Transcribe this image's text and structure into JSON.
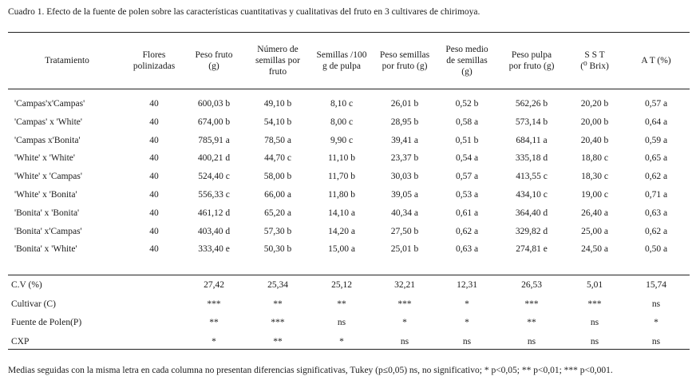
{
  "caption": "Cuadro 1.  Efecto de la fuente de polen sobre las características cuantitativas y cualitativas del fruto en 3 cultivares de chirimoya.",
  "headers": [
    [
      "Tratamiento"
    ],
    [
      "Flores",
      "polinizadas"
    ],
    [
      "Peso fruto",
      "(g)"
    ],
    [
      "Número de",
      "semillas por",
      "fruto"
    ],
    [
      "Semillas /100",
      "g de pulpa"
    ],
    [
      "Peso semillas",
      "por fruto (g)"
    ],
    [
      "Peso medio",
      "de semillas",
      "(g)"
    ],
    [
      "Peso pulpa",
      "por fruto (g)"
    ],
    [
      "S S T",
      "(⁰ Brix)"
    ],
    [
      "A T (%)"
    ]
  ],
  "rows": [
    [
      "'Campas'x'Campas'",
      "40",
      "600,03 b",
      "49,10 b",
      "8,10 c",
      "26,01 b",
      "0,52 b",
      "562,26 b",
      "20,20 b",
      "0,57 a"
    ],
    [
      "'Campas' x 'White'",
      "40",
      "674,00 b",
      "54,10 b",
      "8,00 c",
      "28,95 b",
      "0,58 a",
      "573,14 b",
      "20,00 b",
      "0,64 a"
    ],
    [
      "'Campas x'Bonita'",
      "40",
      "785,91 a",
      "78,50 a",
      "9,90 c",
      "39,41 a",
      "0,51 b",
      "684,11 a",
      "20,40 b",
      "0,59 a"
    ],
    [
      "'White' x 'White'",
      "40",
      "400,21 d",
      "44,70 c",
      "11,10 b",
      "23,37 b",
      "0,54 a",
      "335,18 d",
      "18,80 c",
      "0,65 a"
    ],
    [
      "'White' x 'Campas'",
      "40",
      "524,40 c",
      "58,00 b",
      "11,70 b",
      "30,03 b",
      "0,57 a",
      "413,55 c",
      "18,30 c",
      "0,62 a"
    ],
    [
      "'White' x 'Bonita'",
      "40",
      "556,33 c",
      "66,00 a",
      "11,80 b",
      "39,05 a",
      "0,53 a",
      "434,10 c",
      "19,00 c",
      "0,71 a"
    ],
    [
      "'Bonita' x 'Bonita'",
      "40",
      "461,12 d",
      "65,20 a",
      "14,10 a",
      "40,34 a",
      "0,61 a",
      "364,40 d",
      "26,40 a",
      "0,63 a"
    ],
    [
      "'Bonita' x'Campas'",
      "40",
      "403,40 d",
      "57,30 b",
      "14,20 a",
      "27,50 b",
      "0,62 a",
      "329,82 d",
      "25,00 a",
      "0,62 a"
    ],
    [
      "'Bonita' x 'White'",
      "40",
      "333,40 e",
      "50,30 b",
      "15,00 a",
      "25,01 b",
      "0,63 a",
      "274,81 e",
      "24,50 a",
      "0,50 a"
    ]
  ],
  "stats": [
    [
      "C.V (%)",
      "",
      "27,42",
      "25,34",
      "25,12",
      "32,21",
      "12,31",
      "26,53",
      "5,01",
      "15,74"
    ],
    [
      "Cultivar (C)",
      "",
      "***",
      "**",
      "**",
      "***",
      "*",
      "***",
      "***",
      "ns"
    ],
    [
      "Fuente de Polen(P)",
      "",
      "**",
      "***",
      "ns",
      "*",
      "*",
      "**",
      "ns",
      "*"
    ],
    [
      "CXP",
      "",
      "*",
      "**",
      "*",
      "ns",
      "ns",
      "ns",
      "ns",
      "ns"
    ]
  ],
  "footnote": "Medias seguidas con la misma letra en cada columna no presentan diferencias significativas, Tukey (p≤0,05) ns, no significativo; * p<0,05; ** p<0,01; *** p<0,001."
}
